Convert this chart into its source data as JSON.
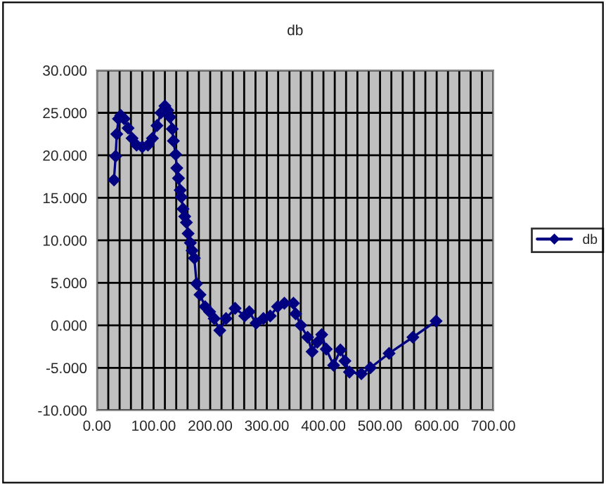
{
  "chart_data": {
    "type": "line",
    "title": "db",
    "x": [
      30,
      33,
      35,
      38,
      42,
      48,
      55,
      62,
      70,
      80,
      90,
      98,
      106,
      113,
      120,
      125,
      129,
      133,
      135,
      139,
      141,
      144,
      147,
      149,
      152,
      155,
      158,
      161,
      165,
      168,
      172,
      176,
      182,
      191,
      199,
      207,
      217,
      228,
      244,
      261,
      269,
      281,
      294,
      306,
      319,
      331,
      347,
      351,
      360,
      372,
      380,
      389,
      397,
      405,
      418,
      430,
      438,
      446,
      467,
      483,
      516,
      558,
      599
    ],
    "series": [
      {
        "name": "db",
        "color": "#000080",
        "values": [
          17.1,
          19.9,
          22.5,
          24.3,
          24.7,
          24.3,
          23.2,
          22.0,
          21.2,
          21.0,
          21.2,
          22.0,
          23.5,
          25.0,
          25.8,
          25.3,
          24.5,
          23.1,
          21.7,
          20.1,
          18.5,
          17.3,
          15.9,
          15.1,
          13.7,
          12.8,
          12.1,
          10.8,
          9.7,
          8.8,
          7.9,
          4.9,
          3.6,
          2.2,
          1.6,
          0.8,
          -0.6,
          0.8,
          2.0,
          1.1,
          1.6,
          0.25,
          0.8,
          1.1,
          2.2,
          2.6,
          2.6,
          1.35,
          0,
          -1.4,
          -3.1,
          -2.0,
          -1.1,
          -2.8,
          -4.7,
          -2.9,
          -4.2,
          -5.5,
          -5.7,
          -5.0,
          -3.3,
          -1.4,
          0.5
        ]
      }
    ],
    "xlim": [
      0,
      700
    ],
    "xticks": [
      {
        "value": 0,
        "label": "0.00"
      },
      {
        "value": 20,
        "label": null
      },
      {
        "value": 40,
        "label": null
      },
      {
        "value": 60,
        "label": null
      },
      {
        "value": 80,
        "label": null
      },
      {
        "value": 100,
        "label": "100.00"
      },
      {
        "value": 120,
        "label": null
      },
      {
        "value": 140,
        "label": null
      },
      {
        "value": 160,
        "label": null
      },
      {
        "value": 180,
        "label": null
      },
      {
        "value": 200,
        "label": "200.00"
      },
      {
        "value": 220,
        "label": null
      },
      {
        "value": 240,
        "label": null
      },
      {
        "value": 260,
        "label": null
      },
      {
        "value": 280,
        "label": null
      },
      {
        "value": 300,
        "label": "300.00"
      },
      {
        "value": 320,
        "label": null
      },
      {
        "value": 340,
        "label": null
      },
      {
        "value": 360,
        "label": null
      },
      {
        "value": 380,
        "label": null
      },
      {
        "value": 400,
        "label": "400.00"
      },
      {
        "value": 420,
        "label": null
      },
      {
        "value": 440,
        "label": null
      },
      {
        "value": 460,
        "label": null
      },
      {
        "value": 480,
        "label": null
      },
      {
        "value": 500,
        "label": "500.00"
      },
      {
        "value": 520,
        "label": null
      },
      {
        "value": 540,
        "label": null
      },
      {
        "value": 560,
        "label": null
      },
      {
        "value": 580,
        "label": null
      },
      {
        "value": 600,
        "label": "600.00"
      },
      {
        "value": 620,
        "label": null
      },
      {
        "value": 640,
        "label": null
      },
      {
        "value": 660,
        "label": null
      },
      {
        "value": 680,
        "label": null
      },
      {
        "value": 700,
        "label": "700.00"
      }
    ],
    "ylim": [
      -10,
      30
    ],
    "yticks": [
      {
        "value": -10,
        "label": "-10.000"
      },
      {
        "value": -5,
        "label": "-5.000"
      },
      {
        "value": 0,
        "label": "0.000"
      },
      {
        "value": 5,
        "label": "5.000"
      },
      {
        "value": 10,
        "label": "10.000"
      },
      {
        "value": 15,
        "label": "15.000"
      },
      {
        "value": 20,
        "label": "20.000"
      },
      {
        "value": 25,
        "label": "25.000"
      },
      {
        "value": 30,
        "label": "30.000"
      }
    ],
    "grid": true,
    "legend": "right",
    "marker": "diamond",
    "line_style": "solid"
  }
}
